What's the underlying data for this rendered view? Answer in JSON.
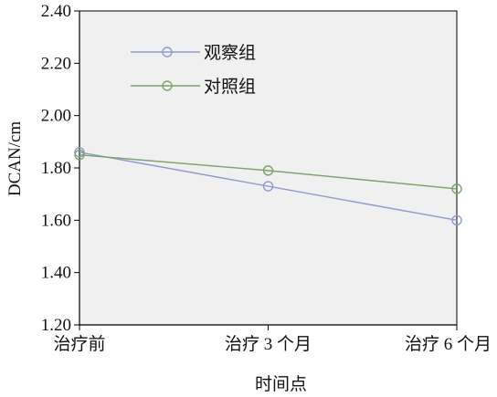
{
  "chart_data": {
    "type": "line",
    "categories": [
      "治疗前",
      "治疗 3 个月",
      "治疗 6 个月"
    ],
    "series": [
      {
        "name": "观察组",
        "values": [
          1.86,
          1.73,
          1.6
        ],
        "color": "#8f9bcf"
      },
      {
        "name": "对照组",
        "values": [
          1.85,
          1.79,
          1.72
        ],
        "color": "#7aa36a"
      }
    ],
    "xlabel": "时间点",
    "ylabel": "DCAN/cm",
    "ylim": [
      1.2,
      2.4
    ],
    "yticks": [
      "1.20",
      "1.40",
      "1.60",
      "1.80",
      "2.00",
      "2.20",
      "2.40"
    ],
    "legend_position": "top-left",
    "grid": false,
    "plot_background": "#f0f0f0"
  }
}
